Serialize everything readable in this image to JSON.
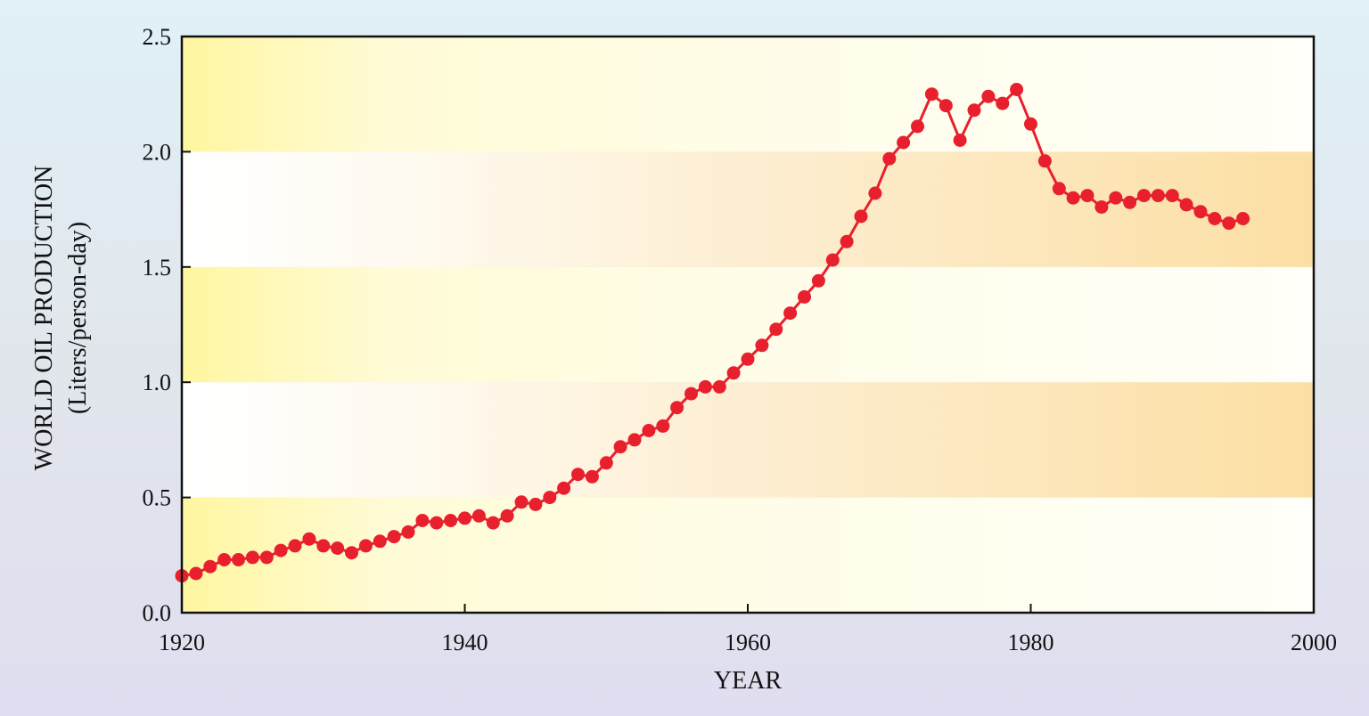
{
  "chart_data": {
    "type": "line",
    "title": "",
    "xlabel": "YEAR",
    "ylabel": "WORLD OIL PRODUCTION",
    "ylabel_sub": "(Liters/person-day)",
    "xlim": [
      1920,
      2000
    ],
    "ylim": [
      0.0,
      2.5
    ],
    "xticks": [
      1920,
      1940,
      1960,
      1980,
      2000
    ],
    "yticks": [
      0.0,
      0.5,
      1.0,
      1.5,
      2.0,
      2.5
    ],
    "xtick_labels": [
      "1920",
      "1940",
      "1960",
      "1980",
      "2000"
    ],
    "ytick_labels": [
      "0.0",
      "0.5",
      "1.0",
      "1.5",
      "2.0",
      "2.5"
    ],
    "grid": false,
    "background_bands": "alternating horizontal bands at 0.5 intervals, shaded yellow on the left fading to white, and white on the left fading to orange",
    "colors": {
      "series": "#e8202e",
      "band_yellow": "#fff6a0",
      "band_orange": "#fcdfa4"
    },
    "series": [
      {
        "marker": "circle",
        "x": [
          1920,
          1921,
          1922,
          1923,
          1924,
          1925,
          1926,
          1927,
          1928,
          1929,
          1930,
          1931,
          1932,
          1933,
          1934,
          1935,
          1936,
          1937,
          1938,
          1939,
          1940,
          1941,
          1942,
          1943,
          1944,
          1945,
          1946,
          1947,
          1948,
          1949,
          1950,
          1951,
          1952,
          1953,
          1954,
          1955,
          1956,
          1957,
          1958,
          1959,
          1960,
          1961,
          1962,
          1963,
          1964,
          1965,
          1966,
          1967,
          1968,
          1969,
          1970,
          1971,
          1972,
          1973,
          1974,
          1975,
          1976,
          1977,
          1978,
          1979,
          1980,
          1981,
          1982,
          1983,
          1984,
          1985,
          1986,
          1987,
          1988,
          1989,
          1990,
          1991,
          1992,
          1993,
          1994,
          1995
        ],
        "y": [
          0.16,
          0.17,
          0.2,
          0.23,
          0.23,
          0.24,
          0.24,
          0.27,
          0.29,
          0.32,
          0.29,
          0.28,
          0.26,
          0.29,
          0.31,
          0.33,
          0.35,
          0.4,
          0.39,
          0.4,
          0.41,
          0.42,
          0.39,
          0.42,
          0.48,
          0.47,
          0.5,
          0.54,
          0.6,
          0.59,
          0.65,
          0.72,
          0.75,
          0.79,
          0.81,
          0.89,
          0.95,
          0.98,
          0.98,
          1.04,
          1.1,
          1.16,
          1.23,
          1.3,
          1.37,
          1.44,
          1.53,
          1.61,
          1.72,
          1.82,
          1.97,
          2.04,
          2.11,
          2.25,
          2.2,
          2.05,
          2.18,
          2.24,
          2.21,
          2.27,
          2.12,
          1.96,
          1.84,
          1.8,
          1.81,
          1.76,
          1.8,
          1.78,
          1.81,
          1.81,
          1.81,
          1.77,
          1.74,
          1.71,
          1.69,
          1.71
        ]
      }
    ]
  }
}
